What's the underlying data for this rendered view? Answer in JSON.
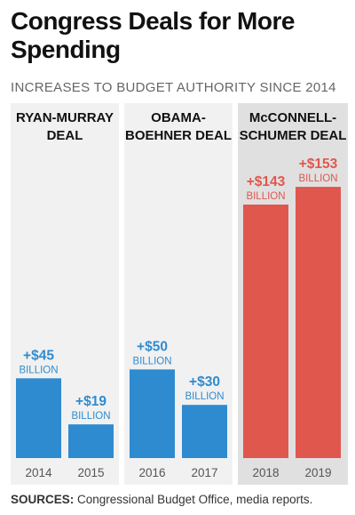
{
  "title": "Congress Deals for More Spending",
  "subtitle": "INCREASES TO BUDGET AUTHORITY SINCE 2014",
  "sources": {
    "label": "SOURCES:",
    "text": "Congressional Budget Office, media reports."
  },
  "chart_data": {
    "type": "bar",
    "categories": [
      "2014",
      "2015",
      "2016",
      "2017",
      "2018",
      "2019"
    ],
    "values": [
      45,
      19,
      50,
      30,
      143,
      153
    ],
    "data_labels": [
      "+$45",
      "+$19",
      "+$50",
      "+$30",
      "+$143",
      "+$153"
    ],
    "unit_label": "BILLION",
    "groups": [
      {
        "name": "RYAN-MURRAY DEAL",
        "lines": [
          "RYAN-MURRAY",
          "DEAL"
        ],
        "categories": [
          "2014",
          "2015"
        ],
        "highlight": false
      },
      {
        "name": "OBAMA-BOEHNER DEAL",
        "lines": [
          "OBAMA-",
          "BOEHNER DEAL"
        ],
        "categories": [
          "2016",
          "2017"
        ],
        "highlight": false
      },
      {
        "name": "McCONNELL-SCHUMER DEAL",
        "lines": [
          "McCONNELL-",
          "SCHUMER DEAL"
        ],
        "categories": [
          "2018",
          "2019"
        ],
        "highlight": true
      }
    ],
    "colors": {
      "bar": "#2e8bd0",
      "bar_highlight": "#e0574d",
      "label": "#2e8bd0",
      "label_highlight": "#e0574d",
      "panel": "#f1f1f1",
      "panel_highlight": "#e0e0e0"
    },
    "ylim": [
      0,
      160
    ],
    "grid": false
  }
}
